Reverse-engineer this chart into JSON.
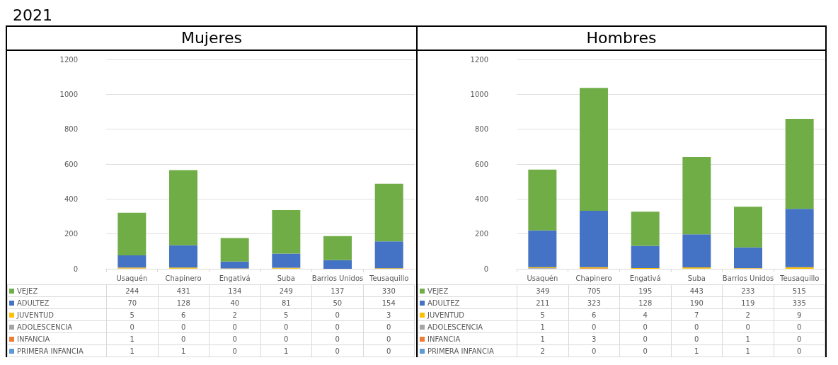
{
  "chart_data": [
    {
      "type": "bar",
      "title": "Mujeres",
      "annotations": [
        "2021"
      ],
      "stacked": true,
      "data_labels": true,
      "legend": "bottom left",
      "grid": "y",
      "ylim": [
        0,
        1200
      ],
      "yticks": [
        0,
        200,
        400,
        600,
        800,
        1000,
        1200
      ],
      "categories": [
        "Usaquén",
        "Chapinero",
        "Engativá",
        "Suba",
        "Barrios Unidos",
        "Teusaquillo"
      ],
      "series": [
        {
          "name": "PRIMERA INFANCIA",
          "color": "#5b9bd5",
          "values": [
            1,
            1,
            0,
            1,
            0,
            0
          ]
        },
        {
          "name": "INFANCIA",
          "color": "#ed7d31",
          "values": [
            1,
            0,
            0,
            0,
            0,
            0
          ]
        },
        {
          "name": "ADOLESCENCIA",
          "color": "#a5a5a5",
          "values": [
            0,
            0,
            0,
            0,
            0,
            0
          ]
        },
        {
          "name": "JUVENTUD",
          "color": "#ffc000",
          "values": [
            5,
            6,
            2,
            5,
            0,
            3
          ]
        },
        {
          "name": "ADULTEZ",
          "color": "#4472c4",
          "values": [
            70,
            128,
            40,
            81,
            50,
            154
          ]
        },
        {
          "name": "VEJEZ",
          "color": "#70ad47",
          "values": [
            244,
            431,
            134,
            249,
            137,
            330
          ]
        }
      ]
    },
    {
      "type": "bar",
      "title": "Hombres",
      "stacked": true,
      "data_labels": true,
      "legend": "bottom left",
      "grid": "y",
      "ylim": [
        0,
        1200
      ],
      "yticks": [
        0,
        200,
        400,
        600,
        800,
        1000,
        1200
      ],
      "categories": [
        "Usaquén",
        "Chapinero",
        "Engativá",
        "Suba",
        "Barrios Unidos",
        "Teusaquillo"
      ],
      "series": [
        {
          "name": "PRIMERA INFANCIA",
          "color": "#5b9bd5",
          "values": [
            2,
            0,
            0,
            1,
            1,
            0
          ]
        },
        {
          "name": "INFANCIA",
          "color": "#ed7d31",
          "values": [
            1,
            3,
            0,
            0,
            1,
            0
          ]
        },
        {
          "name": "ADOLESCENCIA",
          "color": "#a5a5a5",
          "values": [
            1,
            0,
            0,
            0,
            0,
            0
          ]
        },
        {
          "name": "JUVENTUD",
          "color": "#ffc000",
          "values": [
            5,
            6,
            4,
            7,
            2,
            9
          ]
        },
        {
          "name": "ADULTEZ",
          "color": "#4472c4",
          "values": [
            211,
            323,
            128,
            190,
            119,
            335
          ]
        },
        {
          "name": "VEJEZ",
          "color": "#70ad47",
          "values": [
            349,
            705,
            195,
            443,
            233,
            515
          ]
        }
      ]
    }
  ]
}
